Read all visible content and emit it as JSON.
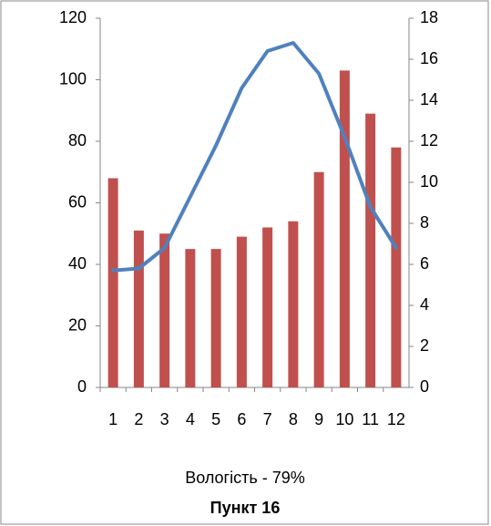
{
  "chart_data": {
    "type": "bar-line",
    "subtitle": "Вологість - 79%",
    "title": "Пункт 16",
    "categories": [
      "1",
      "2",
      "3",
      "4",
      "5",
      "6",
      "7",
      "8",
      "9",
      "10",
      "11",
      "12"
    ],
    "series": [
      {
        "type": "bar",
        "color": "#c0504d",
        "values": [
          68,
          51,
          50,
          45,
          45,
          49,
          52,
          54,
          70,
          103,
          89,
          78
        ]
      },
      {
        "type": "line",
        "axis": "y2",
        "color": "#4f81bd",
        "values": [
          5.7,
          5.8,
          6.8,
          9.3,
          11.8,
          14.6,
          16.4,
          16.8,
          15.3,
          12.2,
          8.8,
          6.8
        ]
      }
    ],
    "ylim": [
      0,
      120
    ],
    "yticks": [
      0,
      20,
      40,
      60,
      80,
      100,
      120
    ],
    "y2lim": [
      0,
      18
    ],
    "y2ticks": [
      0,
      2,
      4,
      6,
      8,
      10,
      12,
      14,
      16,
      18
    ],
    "grid": false
  }
}
